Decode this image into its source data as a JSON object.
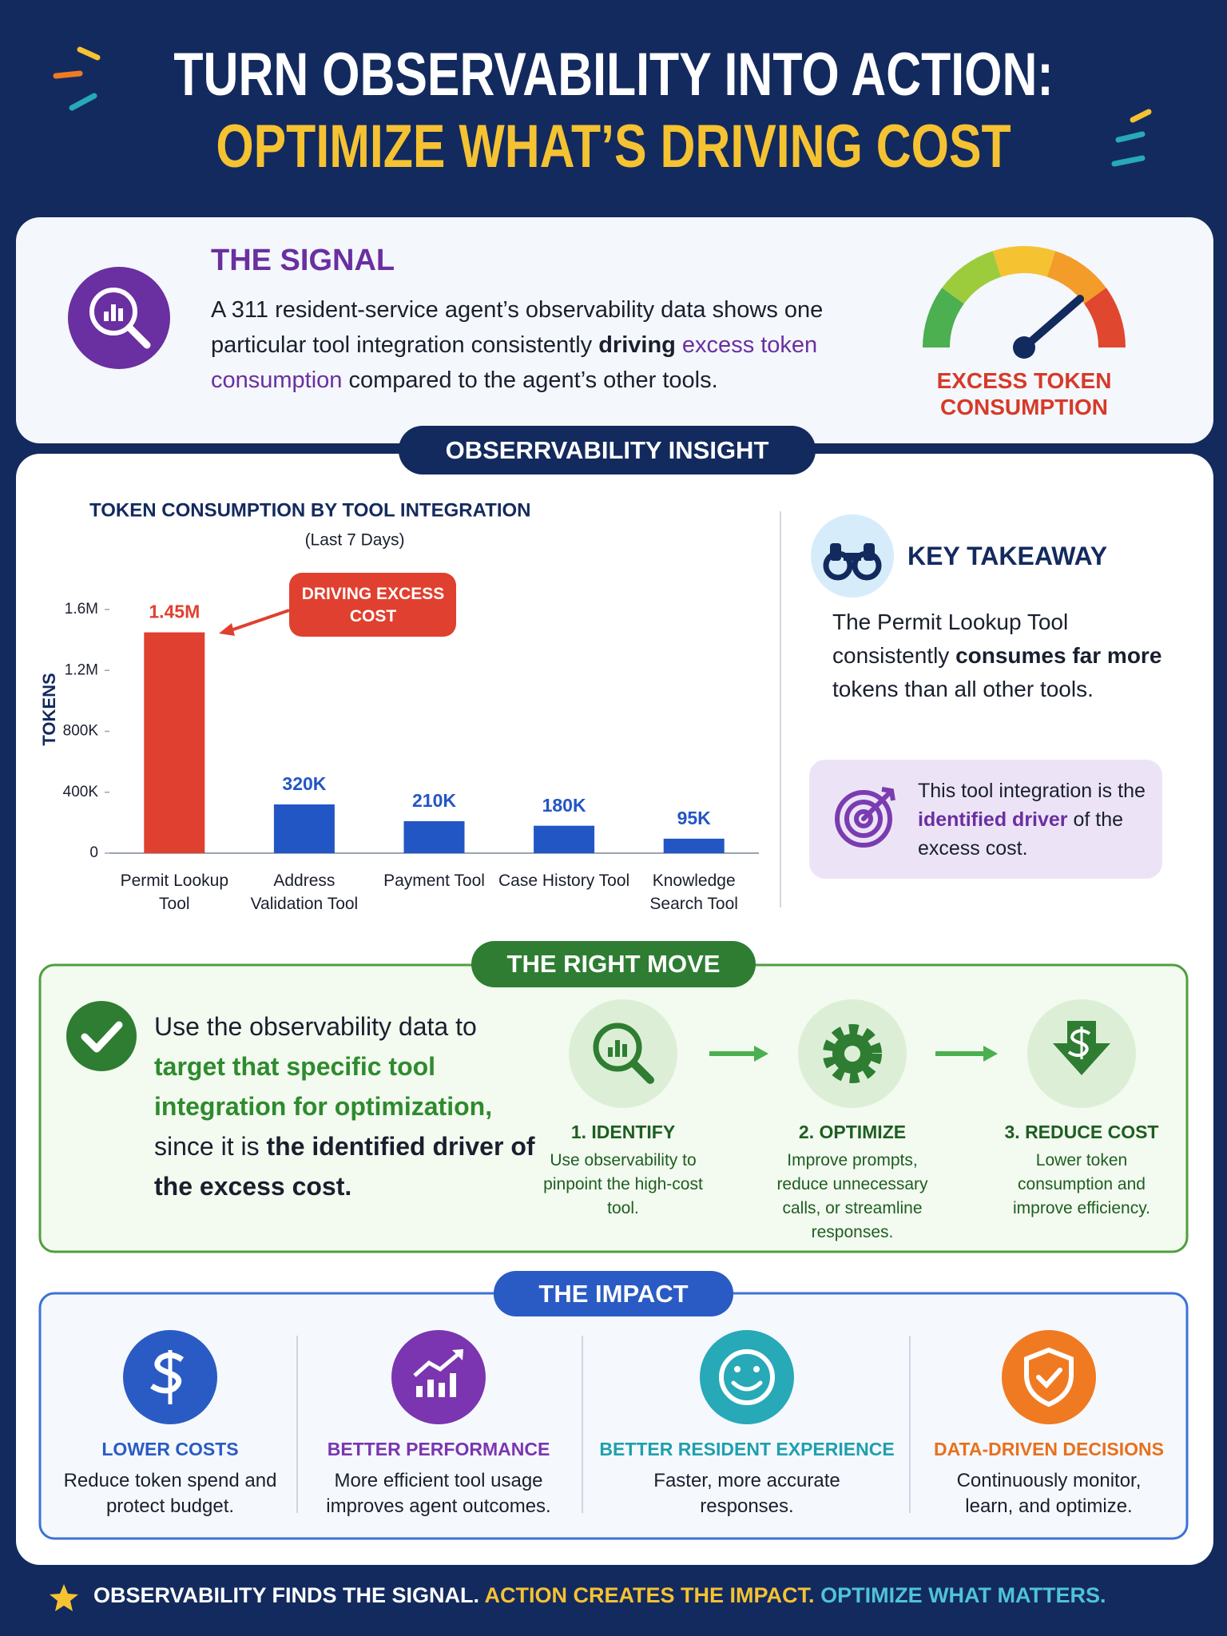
{
  "header": {
    "title": "TURN OBSERVABILITY INTO ACTION:",
    "subtitle": "OPTIMIZE WHAT’S DRIVING COST"
  },
  "signal": {
    "heading": "THE SIGNAL",
    "text": [
      "A 311 resident-service agent’s observability data shows one particular tool integration consistently ",
      "driving",
      " excess token consumption",
      " compared to the agent’s other tools."
    ],
    "gauge_label": "EXCESS TOKEN CONSUMPTION"
  },
  "insight": {
    "badge": "OBSERRVABILITY INSIGHT",
    "takeaway_heading": "KEY TAKEAWAY",
    "takeaway_text": [
      "The Permit Lookup Tool consistently ",
      "consumes far more",
      " tokens than all other tools."
    ],
    "callout": [
      "This tool integration is the ",
      "identified driver",
      " of the excess cost."
    ]
  },
  "chart_data": {
    "type": "bar",
    "title": "TOKEN CONSUMPTION BY TOOL INTEGRATION",
    "subtitle": "(Last 7 Days)",
    "y_label": "TOKENS",
    "categories": [
      "Permit Lookup Tool",
      "Address Validation Tool",
      "Payment Tool",
      "Case History Tool",
      "Knowledge Search Tool"
    ],
    "values": [
      1450000,
      320000,
      210000,
      180000,
      95000
    ],
    "value_labels": [
      "1.45M",
      "320K",
      "210K",
      "180K",
      "95K"
    ],
    "colors": [
      "#e0402f",
      "#2356c5",
      "#2356c5",
      "#2356c5",
      "#2356c5"
    ],
    "ylim": [
      0,
      1600000
    ],
    "yticks": [
      0,
      {
        "value": 400000,
        "label": "400K"
      },
      {
        "value": 800000,
        "label": "800K"
      },
      {
        "value": 1200000,
        "label": "1.2M"
      },
      {
        "value": 1600000,
        "label": "1.6M"
      }
    ],
    "annotation": "DRIVING EXCESS COST",
    "grid": false
  },
  "right_move": {
    "badge": "THE RIGHT MOVE",
    "text": [
      "Use the observability data to ",
      "target that specific tool integration for optimization,",
      " since it is ",
      "the identified driver of the excess cost."
    ],
    "steps": [
      {
        "title": "1. IDENTIFY",
        "description": "Use observability to pinpoint the high-cost tool."
      },
      {
        "title": "2. OPTIMIZE",
        "description": "Improve prompts, reduce unnecessary calls, or streamline responses."
      },
      {
        "title": "3. REDUCE COST",
        "description": "Lower token consumption and improve efficiency."
      }
    ]
  },
  "impact": {
    "badge": "THE IMPACT",
    "items": [
      {
        "title": "LOWER COSTS",
        "description": "Reduce token spend and protect budget."
      },
      {
        "title": "BETTER PERFORMANCE",
        "description": "More efficient tool usage improves agent outcomes."
      },
      {
        "title": "BETTER RESIDENT EXPERIENCE",
        "description": "Faster, more accurate responses."
      },
      {
        "title": "DATA-DRIVEN DECISIONS",
        "description": "Continuously monitor, learn, and optimize."
      }
    ]
  },
  "footer": {
    "parts": [
      "OBSERVABILITY FINDS THE SIGNAL.",
      "ACTION CREATES THE IMPACT.",
      "OPTIMIZE WHAT MATTERS."
    ]
  }
}
